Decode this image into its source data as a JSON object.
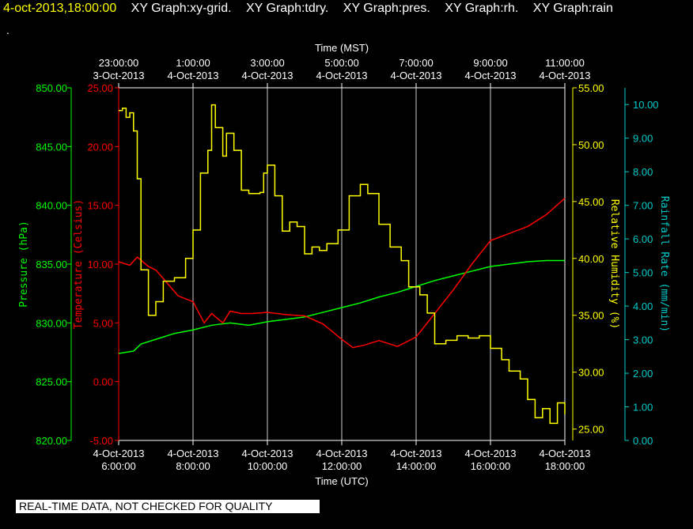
{
  "header": {
    "timestamp": "4-oct-2013,18:00:00",
    "graphs": [
      "XY Graph:xy-grid.",
      "XY Graph:tdry.",
      "XY Graph:pres.",
      "XY Graph:rh.",
      "XY Graph:rain"
    ]
  },
  "dot": ".",
  "footer": "REAL-TIME DATA, NOT CHECKED FOR QUALITY",
  "colors": {
    "pressure": "#00ff00",
    "temperature": "#ff0000",
    "humidity": "#ffff00",
    "rain": "#00cccc",
    "grid": "#ffffff"
  },
  "chart_data": {
    "type": "line",
    "top_axis": {
      "label": "Time (MST)",
      "ticks": [
        [
          "23:00:00",
          "3-Oct-2013"
        ],
        [
          "1:00:00",
          "4-Oct-2013"
        ],
        [
          "3:00:00",
          "4-Oct-2013"
        ],
        [
          "5:00:00",
          "4-Oct-2013"
        ],
        [
          "7:00:00",
          "4-Oct-2013"
        ],
        [
          "9:00:00",
          "4-Oct-2013"
        ],
        [
          "11:00:00",
          "4-Oct-2013"
        ]
      ]
    },
    "bottom_axis": {
      "label": "Time (UTC)",
      "ticks": [
        [
          "4-Oct-2013",
          "6:00:00"
        ],
        [
          "4-Oct-2013",
          "8:00:00"
        ],
        [
          "4-Oct-2013",
          "10:00:00"
        ],
        [
          "4-Oct-2013",
          "12:00:00"
        ],
        [
          "4-Oct-2013",
          "14:00:00"
        ],
        [
          "4-Oct-2013",
          "16:00:00"
        ],
        [
          "4-Oct-2013",
          "18:00:00"
        ]
      ]
    },
    "x_range_hours_utc": [
      6,
      18
    ],
    "axes": {
      "pressure": {
        "label": "Pressure (hPa)",
        "ylim": [
          820,
          850
        ],
        "ticks": [
          "820.00",
          "825.00",
          "830.00",
          "835.00",
          "840.00",
          "845.00",
          "850.00"
        ]
      },
      "temperature": {
        "label": "Temperature (Celsius)",
        "ylim": [
          -5,
          25
        ],
        "ticks": [
          "-5.00",
          "0.00",
          "5.00",
          "10.00",
          "15.00",
          "20.00",
          "25.00"
        ]
      },
      "humidity": {
        "label": "Relative Humidity (%)",
        "ylim": [
          24,
          55
        ],
        "ticks": [
          "25.00",
          "30.00",
          "35.00",
          "40.00",
          "45.00",
          "50.00",
          "55.00"
        ]
      },
      "rain": {
        "label": "Rainfall Rate (mm/min)",
        "ylim": [
          0,
          10.5
        ],
        "ticks": [
          "0.00",
          "1.00",
          "2.00",
          "3.00",
          "4.00",
          "5.00",
          "6.00",
          "7.00",
          "8.00",
          "9.00",
          "10.00"
        ]
      }
    },
    "series": [
      {
        "name": "Pressure",
        "axis": "pressure",
        "x": [
          6.0,
          6.4,
          6.6,
          7.0,
          7.5,
          8.0,
          8.5,
          9.0,
          9.5,
          10.0,
          10.5,
          11.0,
          11.5,
          12.0,
          12.5,
          13.0,
          13.5,
          14.0,
          14.5,
          15.0,
          15.5,
          16.0,
          16.5,
          17.0,
          17.5,
          18.0
        ],
        "y": [
          827.4,
          827.6,
          828.2,
          828.6,
          829.1,
          829.4,
          829.8,
          830.0,
          829.8,
          830.1,
          830.3,
          830.5,
          830.9,
          831.3,
          831.7,
          832.2,
          832.6,
          833.1,
          833.6,
          834.0,
          834.4,
          834.8,
          835.0,
          835.2,
          835.3,
          835.3
        ]
      },
      {
        "name": "Temperature",
        "axis": "temperature",
        "x": [
          6.0,
          6.3,
          6.5,
          6.8,
          7.0,
          7.3,
          7.6,
          8.0,
          8.3,
          8.5,
          8.8,
          9.0,
          9.3,
          9.6,
          10.0,
          10.5,
          11.0,
          11.5,
          12.0,
          12.3,
          12.6,
          13.0,
          13.5,
          14.0,
          14.5,
          15.0,
          15.5,
          16.0,
          16.5,
          17.0,
          17.5,
          18.0
        ],
        "y": [
          10.2,
          9.9,
          10.6,
          9.8,
          9.5,
          8.4,
          7.3,
          6.8,
          5.0,
          5.8,
          5.0,
          6.0,
          5.8,
          5.8,
          5.9,
          5.7,
          5.6,
          4.9,
          3.6,
          2.9,
          3.1,
          3.5,
          3.0,
          3.8,
          5.8,
          7.8,
          10.0,
          12.0,
          12.6,
          13.2,
          14.2,
          15.6
        ]
      },
      {
        "name": "Relative Humidity",
        "axis": "humidity",
        "x": [
          6.0,
          6.1,
          6.2,
          6.3,
          6.4,
          6.5,
          6.6,
          6.8,
          7.0,
          7.2,
          7.5,
          7.8,
          8.0,
          8.2,
          8.4,
          8.5,
          8.6,
          8.8,
          8.9,
          9.1,
          9.3,
          9.5,
          9.8,
          9.9,
          10.0,
          10.2,
          10.4,
          10.6,
          10.8,
          11.0,
          11.2,
          11.4,
          11.6,
          11.9,
          12.2,
          12.5,
          12.7,
          13.0,
          13.3,
          13.6,
          13.8,
          14.1,
          14.3,
          14.5,
          14.8,
          15.1,
          15.4,
          15.7,
          16.0,
          16.3,
          16.5,
          16.8,
          17.0,
          17.2,
          17.4,
          17.6,
          17.8,
          18.0
        ],
        "y": [
          53,
          53.2,
          52.4,
          52.8,
          51.2,
          47,
          39,
          35,
          36.2,
          38,
          38.3,
          40,
          42.5,
          47.5,
          49.5,
          53.5,
          51.5,
          49,
          51,
          49.5,
          46,
          45.7,
          45.8,
          47.5,
          48.2,
          45.5,
          42.4,
          43.2,
          42.8,
          40.4,
          41,
          40.7,
          41.3,
          42.5,
          45.5,
          46.5,
          45.7,
          43,
          41,
          39.8,
          37.5,
          36.8,
          35.2,
          32.5,
          32.8,
          33.2,
          33.0,
          33.2,
          32.1,
          31.1,
          30.1,
          29.4,
          27.6,
          26.0,
          26.8,
          25.5,
          27.3,
          26.3
        ]
      },
      {
        "name": "Rainfall Rate",
        "axis": "rain",
        "x": [],
        "y": []
      }
    ]
  }
}
